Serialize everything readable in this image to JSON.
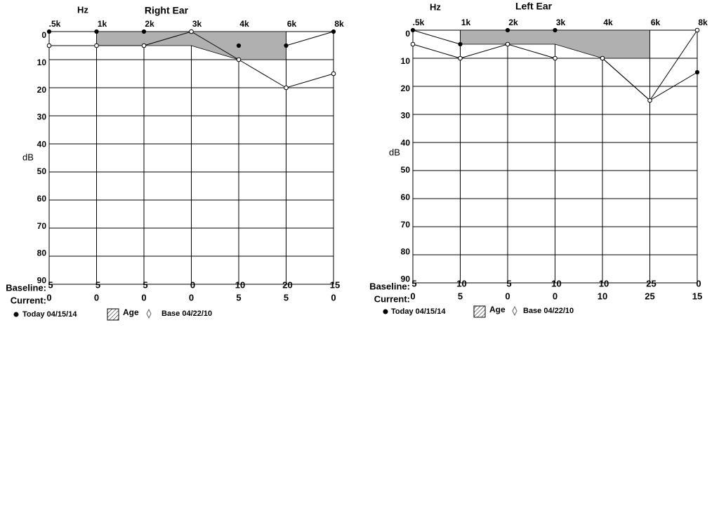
{
  "chart_data": [
    {
      "type": "line",
      "title": "Right Ear",
      "x_label": "Hz",
      "y_label": "dB",
      "categories": [
        ".5k",
        "1k",
        "2k",
        "3k",
        "4k",
        "6k",
        "8k"
      ],
      "ylim": [
        0,
        90
      ],
      "yticks": [
        0,
        10,
        20,
        30,
        40,
        50,
        60,
        70,
        80,
        90
      ],
      "y_inverted": true,
      "grid": true,
      "series": [
        {
          "name": "Today 04/15/14",
          "color": "#000000",
          "marker": "filled",
          "values": [
            0,
            0,
            0,
            0,
            5,
            5,
            0
          ]
        },
        {
          "name": "Age",
          "color": "#b0b0b0",
          "area": true,
          "values": [
            null,
            5,
            5,
            5,
            10,
            10,
            null
          ]
        },
        {
          "name": "Base 04/22/10",
          "color": "#000000",
          "marker": "open",
          "values": [
            5,
            5,
            5,
            0,
            10,
            20,
            15
          ]
        }
      ],
      "row_labels": [
        "Baseline:",
        "Current:"
      ]
    },
    {
      "type": "line",
      "title": "Left Ear",
      "x_label": "Hz",
      "y_label": "dB",
      "categories": [
        ".5k",
        "1k",
        "2k",
        "3k",
        "4k",
        "6k",
        "8k"
      ],
      "ylim": [
        0,
        90
      ],
      "yticks": [
        0,
        10,
        20,
        30,
        40,
        50,
        60,
        70,
        80,
        90
      ],
      "y_inverted": true,
      "grid": true,
      "series": [
        {
          "name": "Today 04/15/14",
          "color": "#000000",
          "marker": "filled",
          "values": [
            0,
            5,
            0,
            0,
            10,
            25,
            15
          ]
        },
        {
          "name": "Age",
          "color": "#b0b0b0",
          "area": true,
          "values": [
            null,
            5,
            5,
            5,
            10,
            10,
            null
          ]
        },
        {
          "name": "Base 04/22/10",
          "color": "#000000",
          "marker": "open",
          "values": [
            5,
            10,
            5,
            10,
            10,
            25,
            0
          ]
        }
      ],
      "row_labels": [
        "Baseline:",
        "Current:"
      ]
    }
  ]
}
